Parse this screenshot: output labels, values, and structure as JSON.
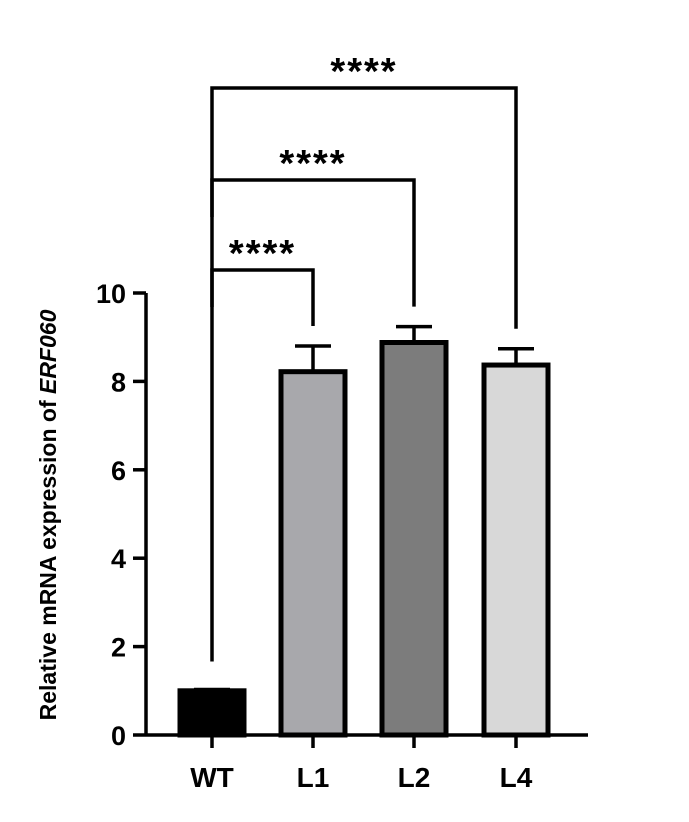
{
  "chart_data": {
    "type": "bar",
    "title": "",
    "xlabel": "",
    "ylabel": {
      "prefix": "Relative mRNA expression of ",
      "gene": "ERF060"
    },
    "ylim": [
      0,
      10
    ],
    "yticks": [
      "0",
      "2",
      "4",
      "6",
      "8",
      "10"
    ],
    "categories": [
      "WT",
      "L1",
      "L2",
      "L4"
    ],
    "values": [
      1.0,
      8.22,
      8.88,
      8.37
    ],
    "errors": [
      0.03,
      0.58,
      0.36,
      0.37
    ],
    "colors": [
      "#000000",
      "#a8a8ac",
      "#7c7c7c",
      "#d8d8d8"
    ],
    "edge_color": "#000000",
    "grid": false,
    "legend": "none",
    "significance": [
      {
        "from": "WT",
        "to": "L1",
        "label": "****"
      },
      {
        "from": "WT",
        "to": "L2",
        "label": "****"
      },
      {
        "from": "WT",
        "to": "L4",
        "label": "****"
      }
    ]
  }
}
